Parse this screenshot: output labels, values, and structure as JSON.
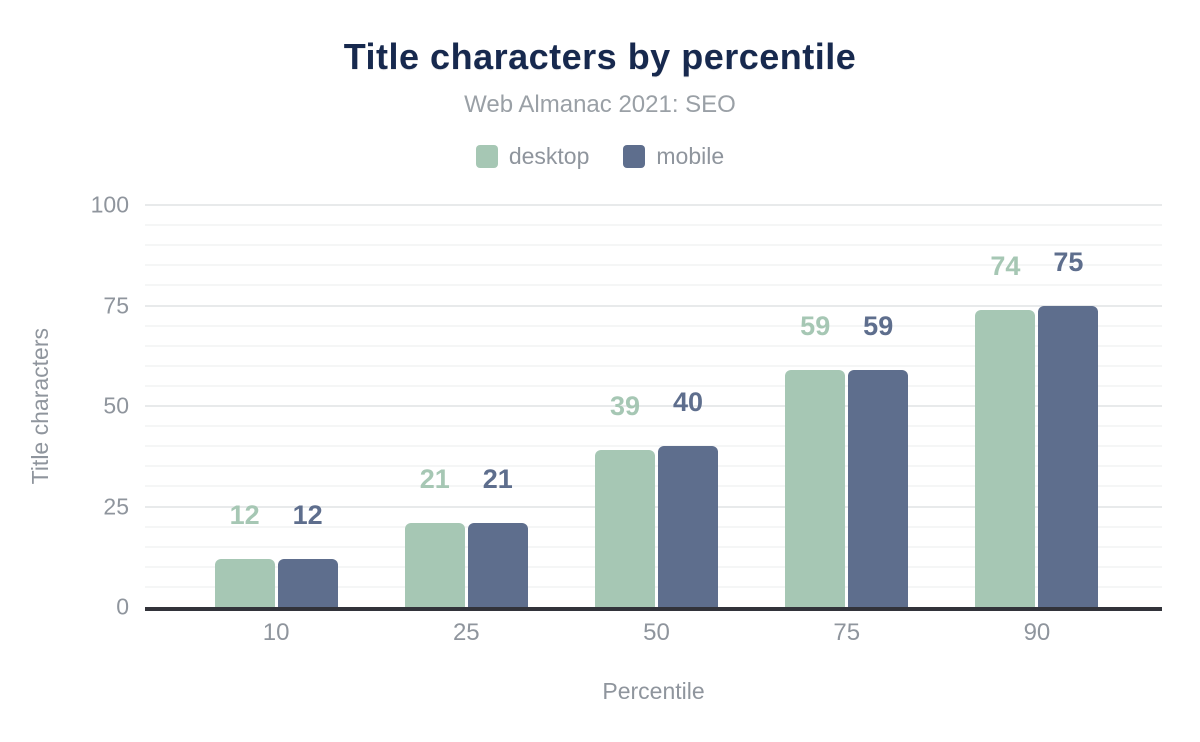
{
  "chart_data": {
    "type": "bar",
    "title": "Title characters by percentile",
    "subtitle": "Web Almanac 2021: SEO",
    "categories": [
      "10",
      "25",
      "50",
      "75",
      "90"
    ],
    "series": [
      {
        "name": "desktop",
        "color": "#a6c7b4",
        "values": [
          12,
          21,
          39,
          59,
          74
        ]
      },
      {
        "name": "mobile",
        "color": "#5e6e8d",
        "values": [
          12,
          21,
          40,
          59,
          75
        ]
      }
    ],
    "xlabel": "Percentile",
    "ylabel": "Title characters",
    "ylim": [
      0,
      100
    ],
    "yticks": [
      0,
      25,
      50,
      75,
      100
    ],
    "minor_grid_step": 5,
    "major_grid_step": 25,
    "grid": "horizontal gridlines on, minor every 5, major every 25",
    "legend_position": "top-center",
    "data_labels": "shown above each bar in series color"
  },
  "style": {
    "title_color": "#17294e",
    "subtitle_color": "#9aa0a6",
    "muted_text_color": "#8f959d",
    "axis_line_color": "#32333a",
    "grid_major_color": "#e8eaeb",
    "grid_minor_color": "#f5f6f6",
    "background_color": "#ffffff"
  }
}
